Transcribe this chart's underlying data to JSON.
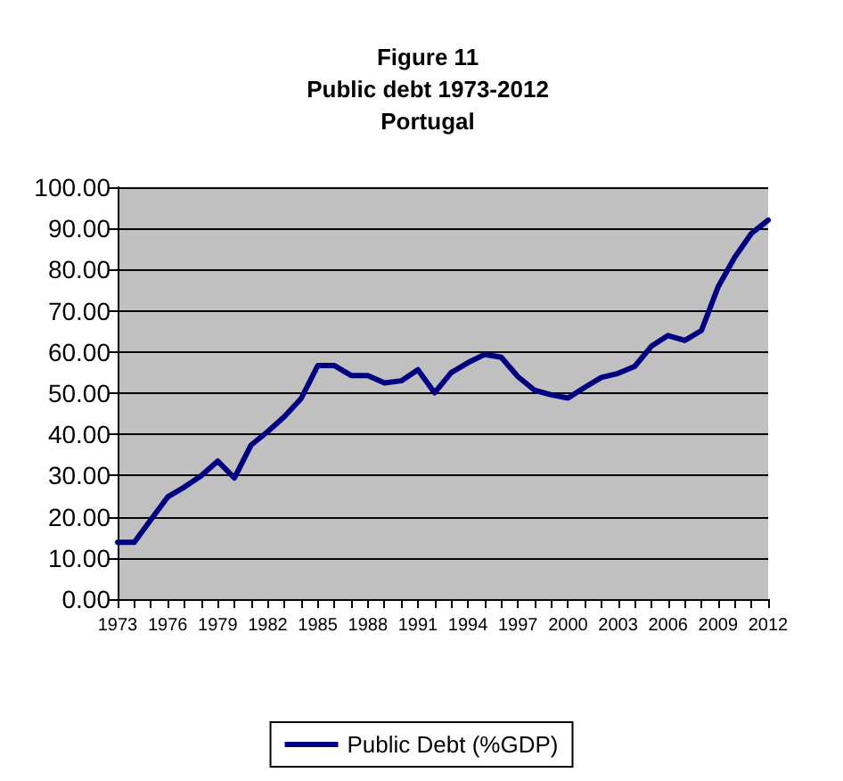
{
  "chart_data": {
    "type": "line",
    "title": "Figure 11\nPublic debt 1973-2012\nPortugal",
    "categories": [
      "1973",
      null,
      null,
      "1976",
      null,
      null,
      "1979",
      null,
      null,
      "1982",
      null,
      null,
      "1985",
      null,
      null,
      "1988",
      null,
      null,
      "1991",
      null,
      null,
      "1994",
      null,
      null,
      "1997",
      null,
      null,
      "2000",
      null,
      null,
      "2003",
      null,
      null,
      "2006",
      null,
      null,
      "2009",
      null,
      null,
      "2012"
    ],
    "series": [
      {
        "name": "Public Debt (%GDP)",
        "color": "#000080",
        "values": [
          13.8,
          13.8,
          19.3,
          24.8,
          27.2,
          29.9,
          33.5,
          29.4,
          37.4,
          40.7,
          44.3,
          48.7,
          56.7,
          56.7,
          54.3,
          54.3,
          52.5,
          53,
          55.7,
          50.1,
          55,
          57.4,
          59.4,
          58.7,
          54,
          50.7,
          49.6,
          48.8,
          51.4,
          53.8,
          54.8,
          56.5,
          61.4,
          64,
          62.8,
          65.2,
          75.8,
          83,
          88.8,
          92
        ]
      }
    ],
    "ylim": [
      0,
      100
    ],
    "yticks": [
      {
        "value": 0,
        "label": "0.00"
      },
      {
        "value": 10,
        "label": "10.00"
      },
      {
        "value": 20,
        "label": "20.00"
      },
      {
        "value": 30,
        "label": "30.00"
      },
      {
        "value": 40,
        "label": "40.00"
      },
      {
        "value": 50,
        "label": "50.00"
      },
      {
        "value": 60,
        "label": "60.00"
      },
      {
        "value": 70,
        "label": "70.00"
      },
      {
        "value": 80,
        "label": "80.00"
      },
      {
        "value": 90,
        "label": "90.00"
      },
      {
        "value": 100,
        "label": "100.00"
      }
    ],
    "grid": "y",
    "legend": "bottom",
    "marker": "none",
    "line_style": "solid"
  }
}
